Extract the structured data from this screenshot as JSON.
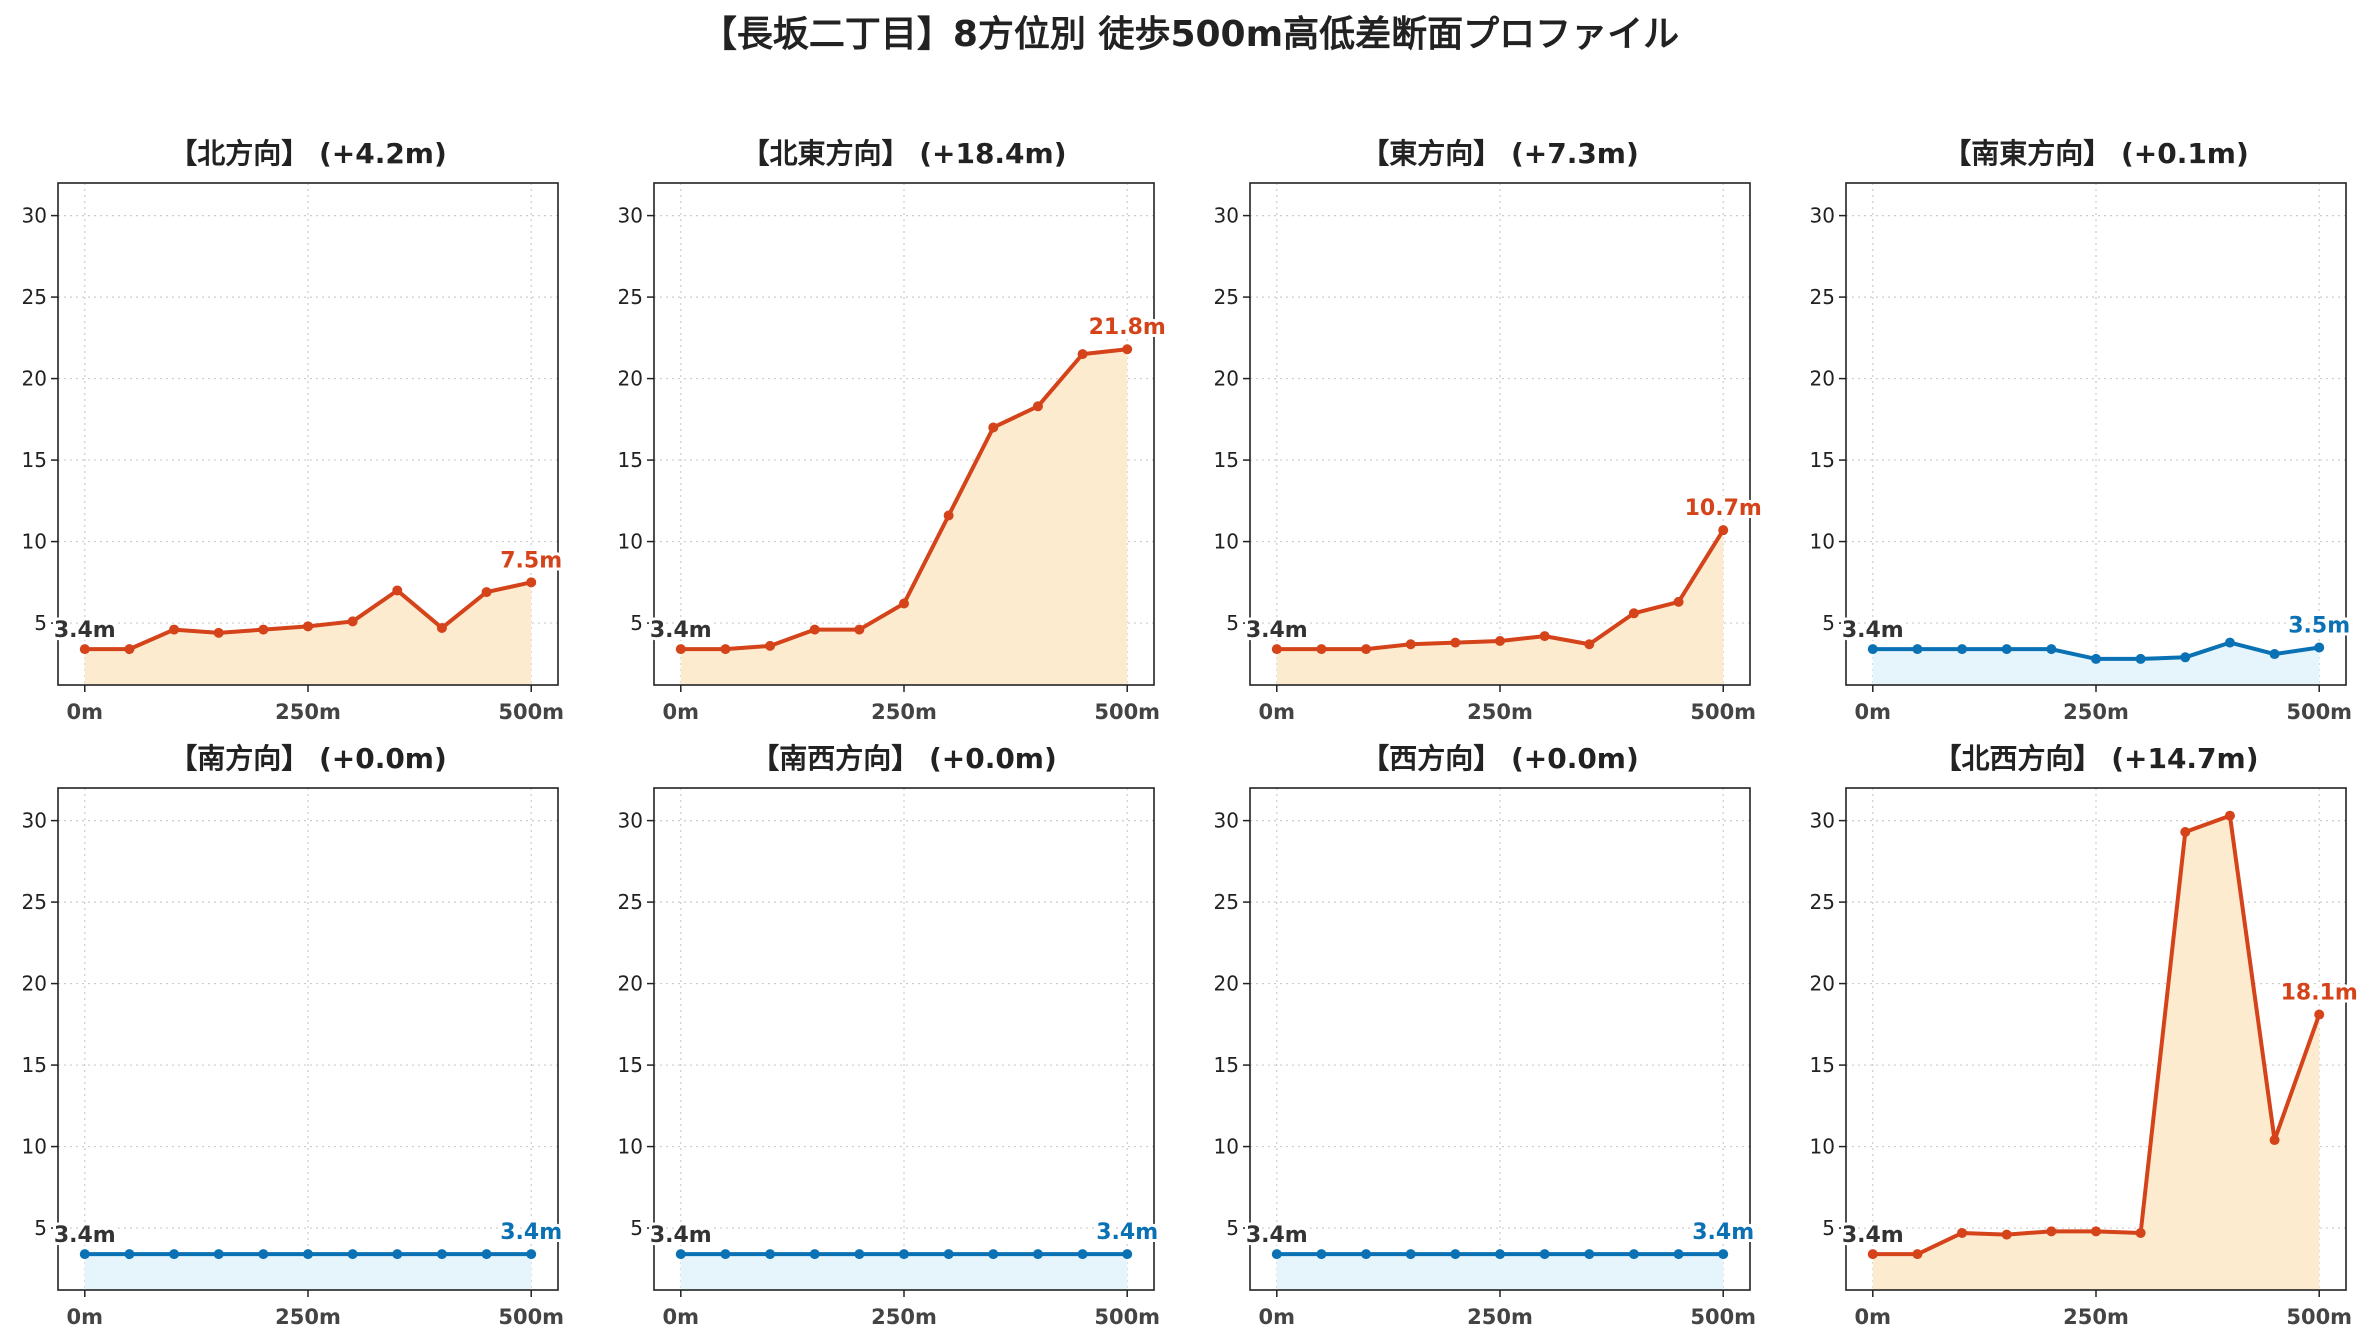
{
  "title": "【長坂二丁目】8方位別 徒歩500m高低差断面プロファイル",
  "colors": {
    "up": "#d4431a",
    "up_fill": "#fdebd0",
    "flat": "#0a71b4",
    "flat_fill": "#e6f5fb"
  },
  "chart_data": [
    {
      "type": "area",
      "title": "【北方向】 (+4.2m)",
      "trend": "up",
      "x": [
        0,
        50,
        100,
        150,
        200,
        250,
        300,
        350,
        400,
        450,
        500
      ],
      "y": [
        3.4,
        3.4,
        4.6,
        4.4,
        4.6,
        4.8,
        5.1,
        7.0,
        4.7,
        6.9,
        7.5
      ],
      "start_label": "3.4m",
      "end_label": "7.5m",
      "x_ticks": [
        "0m",
        "250m",
        "500m"
      ],
      "y_ticks": [
        5,
        10,
        15,
        20,
        25,
        30
      ],
      "ylim": [
        1.2,
        32
      ],
      "xlim": [
        -30,
        530
      ],
      "grid": true
    },
    {
      "type": "area",
      "title": "【北東方向】 (+18.4m)",
      "trend": "up",
      "x": [
        0,
        50,
        100,
        150,
        200,
        250,
        300,
        350,
        400,
        450,
        500
      ],
      "y": [
        3.4,
        3.4,
        3.6,
        4.6,
        4.6,
        6.2,
        11.6,
        17.0,
        18.3,
        21.5,
        21.8
      ],
      "start_label": "3.4m",
      "end_label": "21.8m",
      "x_ticks": [
        "0m",
        "250m",
        "500m"
      ],
      "y_ticks": [
        5,
        10,
        15,
        20,
        25,
        30
      ],
      "ylim": [
        1.2,
        32
      ],
      "xlim": [
        -30,
        530
      ],
      "grid": true
    },
    {
      "type": "area",
      "title": "【東方向】 (+7.3m)",
      "trend": "up",
      "x": [
        0,
        50,
        100,
        150,
        200,
        250,
        300,
        350,
        400,
        450,
        500
      ],
      "y": [
        3.4,
        3.4,
        3.4,
        3.7,
        3.8,
        3.9,
        4.2,
        3.7,
        5.6,
        6.3,
        10.7
      ],
      "start_label": "3.4m",
      "end_label": "10.7m",
      "x_ticks": [
        "0m",
        "250m",
        "500m"
      ],
      "y_ticks": [
        5,
        10,
        15,
        20,
        25,
        30
      ],
      "ylim": [
        1.2,
        32
      ],
      "xlim": [
        -30,
        530
      ],
      "grid": true
    },
    {
      "type": "area",
      "title": "【南東方向】 (+0.1m)",
      "trend": "flat",
      "x": [
        0,
        50,
        100,
        150,
        200,
        250,
        300,
        350,
        400,
        450,
        500
      ],
      "y": [
        3.4,
        3.4,
        3.4,
        3.4,
        3.4,
        2.8,
        2.8,
        2.9,
        3.8,
        3.1,
        3.5
      ],
      "start_label": "3.4m",
      "end_label": "3.5m",
      "x_ticks": [
        "0m",
        "250m",
        "500m"
      ],
      "y_ticks": [
        5,
        10,
        15,
        20,
        25,
        30
      ],
      "ylim": [
        1.2,
        32
      ],
      "xlim": [
        -30,
        530
      ],
      "grid": true
    },
    {
      "type": "area",
      "title": "【南方向】 (+0.0m)",
      "trend": "flat",
      "x": [
        0,
        50,
        100,
        150,
        200,
        250,
        300,
        350,
        400,
        450,
        500
      ],
      "y": [
        3.4,
        3.4,
        3.4,
        3.4,
        3.4,
        3.4,
        3.4,
        3.4,
        3.4,
        3.4,
        3.4
      ],
      "start_label": "3.4m",
      "end_label": "3.4m",
      "x_ticks": [
        "0m",
        "250m",
        "500m"
      ],
      "y_ticks": [
        5,
        10,
        15,
        20,
        25,
        30
      ],
      "ylim": [
        1.2,
        32
      ],
      "xlim": [
        -30,
        530
      ],
      "grid": true
    },
    {
      "type": "area",
      "title": "【南西方向】 (+0.0m)",
      "trend": "flat",
      "x": [
        0,
        50,
        100,
        150,
        200,
        250,
        300,
        350,
        400,
        450,
        500
      ],
      "y": [
        3.4,
        3.4,
        3.4,
        3.4,
        3.4,
        3.4,
        3.4,
        3.4,
        3.4,
        3.4,
        3.4
      ],
      "start_label": "3.4m",
      "end_label": "3.4m",
      "x_ticks": [
        "0m",
        "250m",
        "500m"
      ],
      "y_ticks": [
        5,
        10,
        15,
        20,
        25,
        30
      ],
      "ylim": [
        1.2,
        32
      ],
      "xlim": [
        -30,
        530
      ],
      "grid": true
    },
    {
      "type": "area",
      "title": "【西方向】 (+0.0m)",
      "trend": "flat",
      "x": [
        0,
        50,
        100,
        150,
        200,
        250,
        300,
        350,
        400,
        450,
        500
      ],
      "y": [
        3.4,
        3.4,
        3.4,
        3.4,
        3.4,
        3.4,
        3.4,
        3.4,
        3.4,
        3.4,
        3.4
      ],
      "start_label": "3.4m",
      "end_label": "3.4m",
      "x_ticks": [
        "0m",
        "250m",
        "500m"
      ],
      "y_ticks": [
        5,
        10,
        15,
        20,
        25,
        30
      ],
      "ylim": [
        1.2,
        32
      ],
      "xlim": [
        -30,
        530
      ],
      "grid": true
    },
    {
      "type": "area",
      "title": "【北西方向】 (+14.7m)",
      "trend": "up",
      "x": [
        0,
        50,
        100,
        150,
        200,
        250,
        300,
        350,
        400,
        450,
        500
      ],
      "y": [
        3.4,
        3.4,
        4.7,
        4.6,
        4.8,
        4.8,
        4.7,
        29.3,
        30.3,
        10.4,
        18.1
      ],
      "start_label": "3.4m",
      "end_label": "18.1m",
      "x_ticks": [
        "0m",
        "250m",
        "500m"
      ],
      "y_ticks": [
        5,
        10,
        15,
        20,
        25,
        30
      ],
      "ylim": [
        1.2,
        32
      ],
      "xlim": [
        -30,
        530
      ],
      "grid": true
    }
  ]
}
